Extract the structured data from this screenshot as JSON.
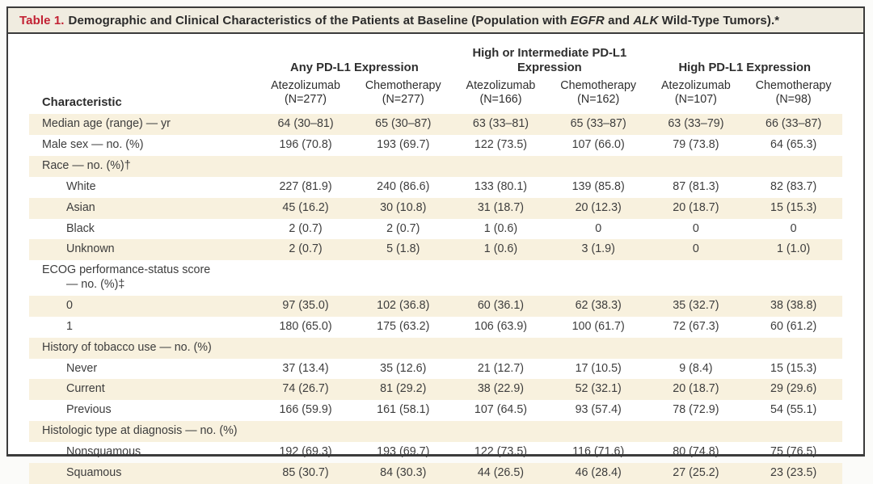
{
  "title": {
    "tag": "Table 1.",
    "seg1": "Demographic and Clinical Characteristics of the Patients at Baseline (Population with ",
    "gene1": "EGFR",
    "seg2": " and ",
    "gene2": "ALK",
    "seg3": " Wild-Type Tumors).*"
  },
  "colors": {
    "accent_red": "#c22133",
    "row_shade": "#f8f1de",
    "title_band": "#f0ece0",
    "border": "#3b3b3b"
  },
  "table": {
    "char_header": "Characteristic",
    "groups": [
      {
        "label": "Any PD-L1 Expression"
      },
      {
        "label": "High or Intermediate PD-L1 Expression"
      },
      {
        "label": "High PD-L1 Expression"
      }
    ],
    "subheaders": [
      {
        "name": "Atezolizumab",
        "n": "(N=277)"
      },
      {
        "name": "Chemotherapy",
        "n": "(N=277)"
      },
      {
        "name": "Atezolizumab",
        "n": "(N=166)"
      },
      {
        "name": "Chemotherapy",
        "n": "(N=162)"
      },
      {
        "name": "Atezolizumab",
        "n": "(N=107)"
      },
      {
        "name": "Chemotherapy",
        "n": "(N=98)"
      }
    ],
    "rows": [
      {
        "label": "Median age (range) — yr",
        "indent": 0,
        "values": [
          "64 (30–81)",
          "65 (30–87)",
          "63 (33–81)",
          "65 (33–87)",
          "63 (33–79)",
          "66 (33–87)"
        ]
      },
      {
        "label": "Male sex — no. (%)",
        "indent": 0,
        "values": [
          "196 (70.8)",
          "193 (69.7)",
          "122 (73.5)",
          "107 (66.0)",
          "79 (73.8)",
          "64 (65.3)"
        ]
      },
      {
        "label": "Race — no. (%)†",
        "indent": 0,
        "values": [
          "",
          "",
          "",
          "",
          "",
          ""
        ]
      },
      {
        "label": "White",
        "indent": 1,
        "values": [
          "227 (81.9)",
          "240 (86.6)",
          "133 (80.1)",
          "139 (85.8)",
          "87 (81.3)",
          "82 (83.7)"
        ]
      },
      {
        "label": "Asian",
        "indent": 1,
        "values": [
          "45 (16.2)",
          "30 (10.8)",
          "31 (18.7)",
          "20 (12.3)",
          "20 (18.7)",
          "15 (15.3)"
        ]
      },
      {
        "label": "Black",
        "indent": 1,
        "values": [
          "2 (0.7)",
          "2 (0.7)",
          "1 (0.6)",
          "0",
          "0",
          "0"
        ]
      },
      {
        "label": "Unknown",
        "indent": 1,
        "values": [
          "2 (0.7)",
          "5 (1.8)",
          "1 (0.6)",
          "3 (1.9)",
          "0",
          "1 (1.0)"
        ]
      },
      {
        "label": "ECOG performance-status score",
        "label2": "— no. (%)‡",
        "indent": 0,
        "values": [
          "",
          "",
          "",
          "",
          "",
          ""
        ]
      },
      {
        "label": "0",
        "indent": 1,
        "values": [
          "97 (35.0)",
          "102 (36.8)",
          "60 (36.1)",
          "62 (38.3)",
          "35 (32.7)",
          "38 (38.8)"
        ]
      },
      {
        "label": "1",
        "indent": 1,
        "values": [
          "180 (65.0)",
          "175 (63.2)",
          "106 (63.9)",
          "100 (61.7)",
          "72 (67.3)",
          "60 (61.2)"
        ]
      },
      {
        "label": "History of tobacco use — no. (%)",
        "indent": 0,
        "values": [
          "",
          "",
          "",
          "",
          "",
          ""
        ]
      },
      {
        "label": "Never",
        "indent": 1,
        "values": [
          "37 (13.4)",
          "35 (12.6)",
          "21 (12.7)",
          "17 (10.5)",
          "9 (8.4)",
          "15 (15.3)"
        ]
      },
      {
        "label": "Current",
        "indent": 1,
        "values": [
          "74 (26.7)",
          "81 (29.2)",
          "38 (22.9)",
          "52 (32.1)",
          "20 (18.7)",
          "29 (29.6)"
        ]
      },
      {
        "label": "Previous",
        "indent": 1,
        "values": [
          "166 (59.9)",
          "161 (58.1)",
          "107 (64.5)",
          "93 (57.4)",
          "78 (72.9)",
          "54 (55.1)"
        ]
      },
      {
        "label": "Histologic type at diagnosis — no. (%)",
        "indent": 0,
        "values": [
          "",
          "",
          "",
          "",
          "",
          ""
        ]
      },
      {
        "label": "Nonsquamous",
        "indent": 1,
        "values": [
          "192 (69.3)",
          "193 (69.7)",
          "122 (73.5)",
          "116 (71.6)",
          "80 (74.8)",
          "75 (76.5)"
        ]
      },
      {
        "label": "Squamous",
        "indent": 1,
        "values": [
          "85 (30.7)",
          "84 (30.3)",
          "44 (26.5)",
          "46 (28.4)",
          "27 (25.2)",
          "23 (23.5)"
        ]
      }
    ]
  }
}
